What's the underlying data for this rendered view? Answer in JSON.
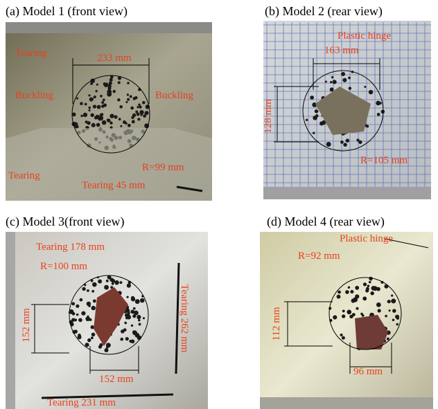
{
  "panels": [
    {
      "caption": "(a) Model 1 (front view)",
      "annotations": [
        "Tearing",
        "233 mm",
        "Buckling",
        "Buckling",
        "Tearing",
        "R=99 mm",
        "Tearing 45 mm"
      ]
    },
    {
      "caption": "(b) Model 2 (rear view)",
      "annotations": [
        "Plastic hinge",
        "163 mm",
        "128 mm",
        "R=105 mm"
      ]
    },
    {
      "caption": "(c) Model 3(front view)",
      "annotations": [
        "Tearing 178 mm",
        "R=100 mm",
        "152 mm",
        "Tearing 262 mm",
        "152 mm",
        "Tearing 231 mm"
      ]
    },
    {
      "caption": "(d) Model 4 (rear view)",
      "annotations": [
        "Plastic hinge",
        "R=92 mm",
        "112 mm",
        "96 mm"
      ]
    }
  ]
}
